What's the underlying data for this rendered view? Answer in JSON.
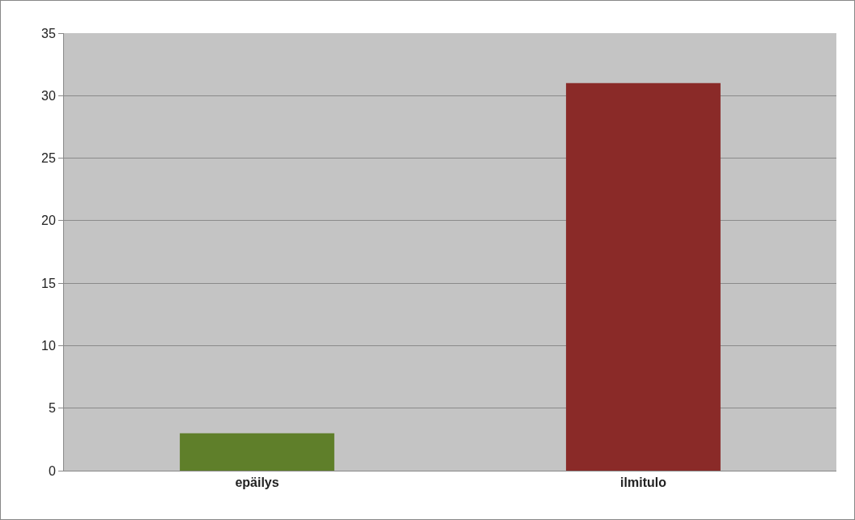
{
  "chart_data": {
    "type": "bar",
    "categories": [
      "epäilys",
      "ilmitulo"
    ],
    "values": [
      3,
      31
    ],
    "colors": [
      "#5f7f2a",
      "#8a2a28"
    ],
    "ylim": [
      0,
      35
    ],
    "yticks": [
      0,
      5,
      10,
      15,
      20,
      25,
      30,
      35
    ],
    "grid": "y",
    "legend": false
  }
}
